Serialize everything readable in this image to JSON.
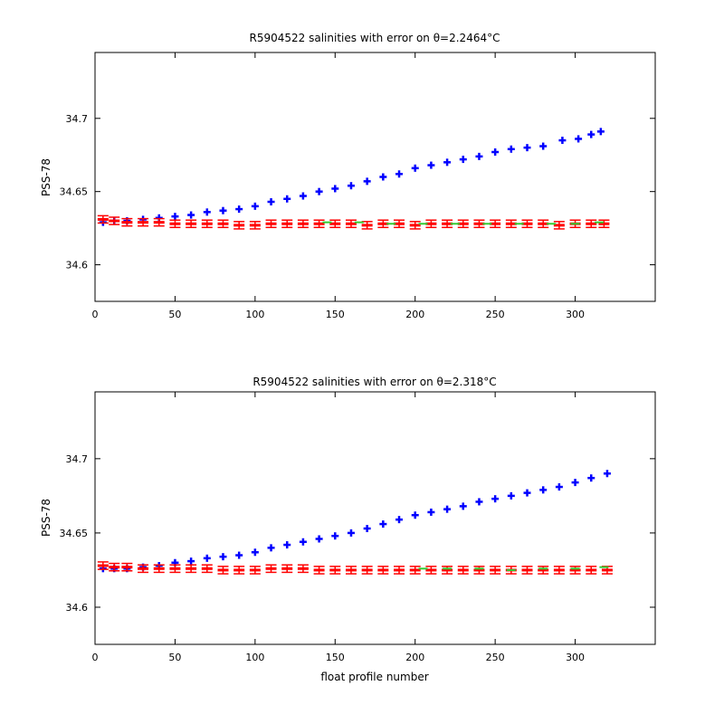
{
  "chart_data": [
    {
      "type": "scatter",
      "title": "R5904522 salinities with error on θ=2.2464°C",
      "xlabel": "",
      "ylabel": "PSS-78",
      "xlim": [
        0,
        350
      ],
      "ylim": [
        34.575,
        34.745
      ],
      "xticks": [
        0,
        50,
        100,
        150,
        200,
        250,
        300
      ],
      "yticks": [
        34.6,
        34.65,
        34.7
      ],
      "ytick_labels": [
        "34.6",
        "34.65",
        "34.7"
      ],
      "grid": false,
      "series": [
        {
          "color": "#0000ff",
          "marker": "plus",
          "x": [
            5,
            12,
            20,
            30,
            40,
            50,
            60,
            70,
            80,
            90,
            100,
            110,
            120,
            130,
            140,
            150,
            160,
            170,
            180,
            190,
            200,
            210,
            220,
            230,
            240,
            250,
            260,
            270,
            280,
            292,
            302,
            310,
            316
          ],
          "y": [
            34.629,
            34.63,
            34.63,
            34.631,
            34.632,
            34.633,
            34.634,
            34.636,
            34.637,
            34.638,
            34.64,
            34.643,
            34.645,
            34.647,
            34.65,
            34.652,
            34.654,
            34.657,
            34.66,
            34.662,
            34.666,
            34.668,
            34.67,
            34.672,
            34.674,
            34.677,
            34.679,
            34.68,
            34.681,
            34.685,
            34.686,
            34.689,
            34.691
          ]
        },
        {
          "color": "#ff0000",
          "marker": "error-bar",
          "x": [
            5,
            12,
            20,
            30,
            40,
            50,
            60,
            70,
            80,
            90,
            100,
            110,
            120,
            130,
            140,
            150,
            160,
            170,
            180,
            190,
            200,
            210,
            220,
            230,
            240,
            250,
            260,
            270,
            280,
            290,
            300,
            310,
            318
          ],
          "y": [
            34.631,
            34.63,
            34.629,
            34.629,
            34.629,
            34.628,
            34.628,
            34.628,
            34.628,
            34.627,
            34.627,
            34.628,
            34.628,
            34.628,
            34.628,
            34.628,
            34.628,
            34.627,
            34.628,
            34.628,
            34.627,
            34.628,
            34.628,
            34.628,
            34.628,
            34.628,
            34.628,
            34.628,
            34.628,
            34.627,
            34.628,
            34.628,
            34.628
          ],
          "err": 0.0025
        },
        {
          "color": "#33cc33",
          "marker": "dash",
          "x": [
            145,
            165,
            185,
            205,
            225,
            245,
            265,
            285,
            300,
            315
          ],
          "y": [
            34.629,
            34.629,
            34.628,
            34.628,
            34.628,
            34.628,
            34.628,
            34.628,
            34.628,
            34.629
          ]
        }
      ]
    },
    {
      "type": "scatter",
      "title": "R5904522 salinities with error on θ=2.318°C",
      "xlabel": "float profile number",
      "ylabel": "PSS-78",
      "xlim": [
        0,
        350
      ],
      "ylim": [
        34.575,
        34.745
      ],
      "xticks": [
        0,
        50,
        100,
        150,
        200,
        250,
        300
      ],
      "yticks": [
        34.6,
        34.65,
        34.7
      ],
      "ytick_labels": [
        "34.6",
        "34.65",
        "34.7"
      ],
      "grid": false,
      "series": [
        {
          "color": "#0000ff",
          "marker": "plus",
          "x": [
            5,
            12,
            20,
            30,
            40,
            50,
            60,
            70,
            80,
            90,
            100,
            110,
            120,
            130,
            140,
            150,
            160,
            170,
            180,
            190,
            200,
            210,
            220,
            230,
            240,
            250,
            260,
            270,
            280,
            290,
            300,
            310,
            320
          ],
          "y": [
            34.626,
            34.626,
            34.626,
            34.627,
            34.628,
            34.63,
            34.631,
            34.633,
            34.634,
            34.635,
            34.637,
            34.64,
            34.642,
            34.644,
            34.646,
            34.648,
            34.65,
            34.653,
            34.656,
            34.659,
            34.662,
            34.664,
            34.666,
            34.668,
            34.671,
            34.673,
            34.675,
            34.677,
            34.679,
            34.681,
            34.684,
            34.687,
            34.69
          ]
        },
        {
          "color": "#ff0000",
          "marker": "error-bar",
          "x": [
            5,
            12,
            20,
            30,
            40,
            50,
            60,
            70,
            80,
            90,
            100,
            110,
            120,
            130,
            140,
            150,
            160,
            170,
            180,
            190,
            200,
            210,
            220,
            230,
            240,
            250,
            260,
            270,
            280,
            290,
            300,
            310,
            320
          ],
          "y": [
            34.628,
            34.627,
            34.627,
            34.626,
            34.626,
            34.626,
            34.626,
            34.626,
            34.625,
            34.625,
            34.625,
            34.626,
            34.626,
            34.626,
            34.625,
            34.625,
            34.625,
            34.625,
            34.625,
            34.625,
            34.625,
            34.625,
            34.625,
            34.625,
            34.625,
            34.625,
            34.625,
            34.625,
            34.625,
            34.625,
            34.625,
            34.625,
            34.625
          ],
          "err": 0.0025
        },
        {
          "color": "#33cc33",
          "marker": "dash",
          "x": [
            205,
            220,
            240,
            260,
            280,
            300,
            318
          ],
          "y": [
            34.626,
            34.626,
            34.626,
            34.625,
            34.626,
            34.626,
            34.627
          ]
        }
      ]
    }
  ]
}
